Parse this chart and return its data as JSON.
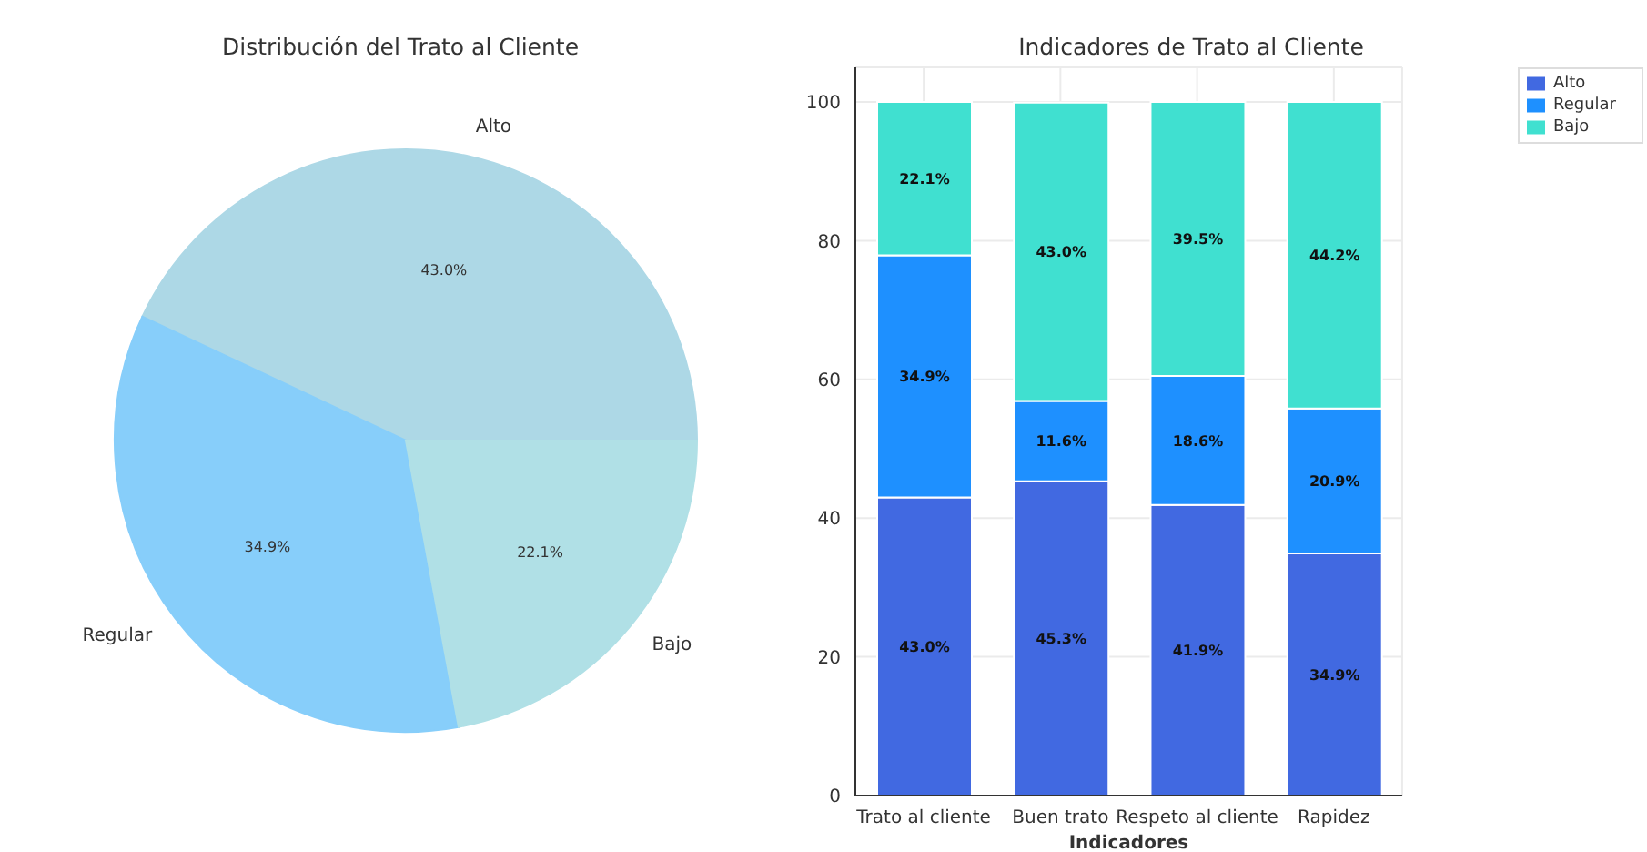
{
  "chart_data": [
    {
      "type": "pie",
      "title": "Distribución del Trato al Cliente",
      "categories": [
        "Alto",
        "Regular",
        "Bajo"
      ],
      "values": [
        43.0,
        34.9,
        22.1
      ],
      "colors": [
        "#add8e6",
        "#87cefa",
        "#b0e0e6"
      ],
      "value_labels": [
        "43.0%",
        "34.9%",
        "22.1%"
      ]
    },
    {
      "type": "bar",
      "title": "Indicadores de Trato al Cliente",
      "xlabel": "Indicadores",
      "categories": [
        "Trato al cliente",
        "Buen trato",
        "Respeto al cliente",
        "Rapidez"
      ],
      "stacked": true,
      "series": [
        {
          "name": "Alto",
          "color": "#4169e1",
          "values": [
            43.0,
            45.3,
            41.9,
            34.9
          ],
          "value_labels": [
            "43.0%",
            "45.3%",
            "41.9%",
            "34.9%"
          ]
        },
        {
          "name": "Regular",
          "color": "#1e90ff",
          "values": [
            34.9,
            11.6,
            18.6,
            20.9
          ],
          "value_labels": [
            "34.9%",
            "11.6%",
            "18.6%",
            "20.9%"
          ]
        },
        {
          "name": "Bajo",
          "color": "#40e0d0",
          "values": [
            22.1,
            43.0,
            39.5,
            44.2
          ],
          "value_labels": [
            "22.1%",
            "43.0%",
            "39.5%",
            "44.2%"
          ]
        }
      ],
      "ylim": [
        0,
        105
      ],
      "yticks": [
        0,
        20,
        40,
        60,
        80,
        100
      ],
      "grid": true,
      "legend": "top right"
    }
  ]
}
